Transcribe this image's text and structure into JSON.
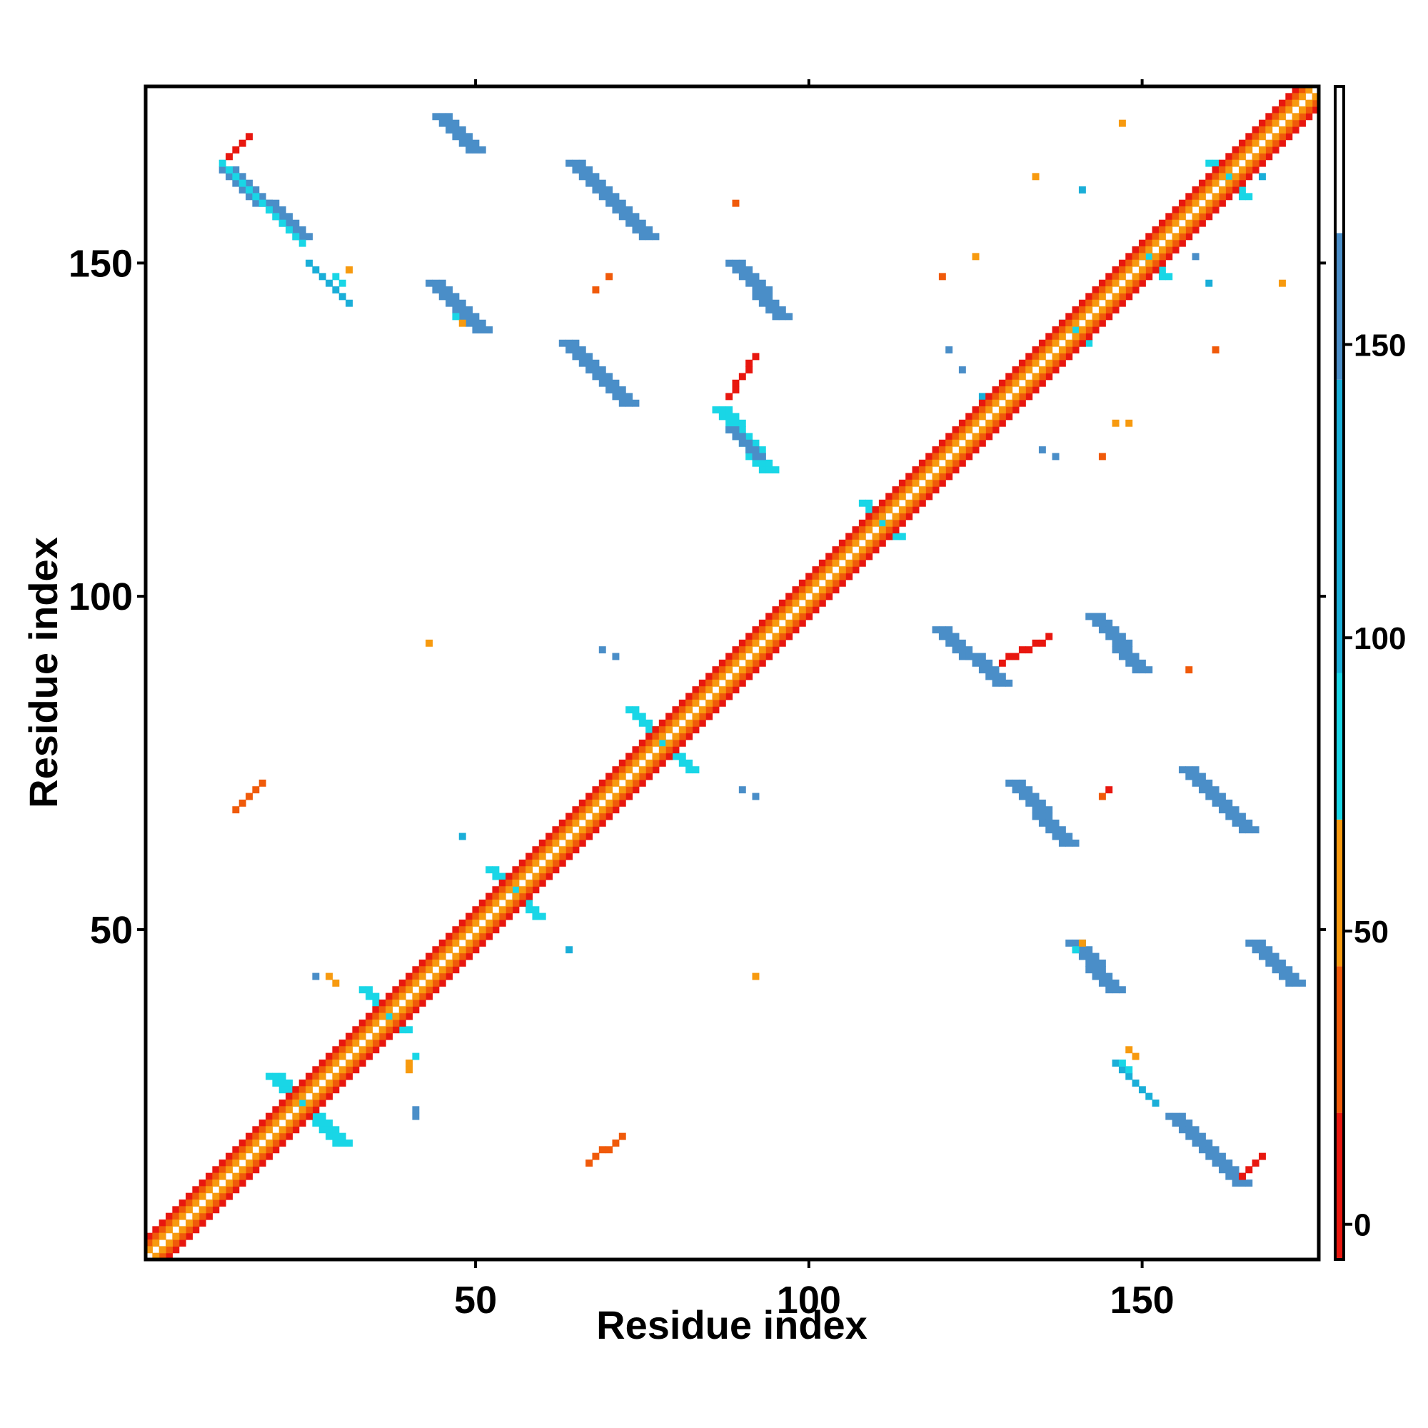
{
  "chart_data": {
    "type": "heatmap",
    "title": "",
    "xlabel": "Residue index",
    "ylabel": "Residue index",
    "xlim": [
      1,
      176
    ],
    "ylim": [
      1,
      176
    ],
    "x_ticks": [
      50,
      100,
      150
    ],
    "y_ticks": [
      50,
      100,
      150
    ],
    "grid": false,
    "colorbar": {
      "ticks": [
        0,
        50,
        100,
        150
      ],
      "range": [
        -6,
        194
      ],
      "bands": [
        {
          "from": -6,
          "to": 19,
          "color": "#e8170f"
        },
        {
          "from": 19,
          "to": 44,
          "color": "#f05a0a"
        },
        {
          "from": 44,
          "to": 69,
          "color": "#f79a0f"
        },
        {
          "from": 69,
          "to": 94,
          "color": "#19d6e6"
        },
        {
          "from": 94,
          "to": 144,
          "color": "#1aaed8"
        },
        {
          "from": 144,
          "to": 169,
          "color": "#4a8ec8"
        },
        {
          "from": 169,
          "to": 194,
          "color": "#ffffff"
        }
      ]
    },
    "colors": {
      "red": "#e8170f",
      "orange_red": "#f05a0a",
      "orange": "#f79a0f",
      "cyan": "#19d6e6",
      "light_blue": "#1aaed8",
      "steel_blue": "#4a8ec8"
    },
    "diagonal": {
      "from": 1,
      "to": 176,
      "bands": [
        {
          "offset": 1,
          "color": "orange"
        },
        {
          "offset": 2,
          "color": "orange_red"
        },
        {
          "offset": 3,
          "color": "red"
        }
      ]
    },
    "segments": [
      {
        "x1": 12,
        "y1": 164,
        "x2": 23,
        "y2": 154,
        "width": 3,
        "color": "steel_blue"
      },
      {
        "x1": 12,
        "y1": 165,
        "x2": 24,
        "y2": 153,
        "width": 1,
        "color": "cyan"
      },
      {
        "x1": 44,
        "y1": 172,
        "x2": 49,
        "y2": 167,
        "width": 3,
        "color": "steel_blue"
      },
      {
        "x1": 64,
        "y1": 165,
        "x2": 75,
        "y2": 154,
        "width": 3,
        "color": "steel_blue"
      },
      {
        "x1": 88,
        "y1": 150,
        "x2": 95,
        "y2": 142,
        "width": 3,
        "color": "steel_blue"
      },
      {
        "x1": 43,
        "y1": 147,
        "x2": 50,
        "y2": 140,
        "width": 3,
        "color": "steel_blue"
      },
      {
        "x1": 63,
        "y1": 138,
        "x2": 72,
        "y2": 129,
        "width": 3,
        "color": "steel_blue"
      },
      {
        "x1": 86,
        "y1": 128,
        "x2": 93,
        "y2": 119,
        "width": 3,
        "color": "cyan"
      },
      {
        "x1": 88,
        "y1": 125,
        "x2": 92,
        "y2": 121,
        "width": 2,
        "color": "steel_blue"
      },
      {
        "x1": 119,
        "y1": 95,
        "x2": 128,
        "y2": 87,
        "width": 3,
        "color": "steel_blue"
      },
      {
        "x1": 142,
        "y1": 97,
        "x2": 149,
        "y2": 89,
        "width": 3,
        "color": "steel_blue"
      },
      {
        "x1": 130,
        "y1": 72,
        "x2": 138,
        "y2": 63,
        "width": 3,
        "color": "steel_blue"
      },
      {
        "x1": 156,
        "y1": 74,
        "x2": 165,
        "y2": 65,
        "width": 3,
        "color": "steel_blue"
      },
      {
        "x1": 139,
        "y1": 48,
        "x2": 145,
        "y2": 41,
        "width": 3,
        "color": "steel_blue"
      },
      {
        "x1": 166,
        "y1": 48,
        "x2": 172,
        "y2": 42,
        "width": 3,
        "color": "steel_blue"
      },
      {
        "x1": 154,
        "y1": 22,
        "x2": 164,
        "y2": 12,
        "width": 3,
        "color": "steel_blue"
      },
      {
        "x1": 19,
        "y1": 28,
        "x2": 29,
        "y2": 18,
        "width": 3,
        "color": "cyan"
      },
      {
        "x1": 33,
        "y1": 41,
        "x2": 39,
        "y2": 35,
        "width": 2,
        "color": "cyan"
      },
      {
        "x1": 52,
        "y1": 59,
        "x2": 59,
        "y2": 52,
        "width": 2,
        "color": "cyan"
      },
      {
        "x1": 73,
        "y1": 83,
        "x2": 82,
        "y2": 74,
        "width": 2,
        "color": "cyan"
      },
      {
        "x1": 108,
        "y1": 114,
        "x2": 113,
        "y2": 109,
        "width": 2,
        "color": "cyan"
      },
      {
        "x1": 138,
        "y1": 141,
        "x2": 141,
        "y2": 138,
        "width": 2,
        "color": "cyan"
      },
      {
        "x1": 149,
        "y1": 152,
        "x2": 153,
        "y2": 148,
        "width": 2,
        "color": "cyan"
      },
      {
        "x1": 160,
        "y1": 165,
        "x2": 165,
        "y2": 160,
        "width": 2,
        "color": "cyan"
      },
      {
        "x1": 13,
        "y1": 166,
        "x2": 16,
        "y2": 169,
        "width": 1,
        "color": "red"
      },
      {
        "x1": 165,
        "y1": 13,
        "x2": 168,
        "y2": 16,
        "width": 1,
        "color": "red"
      },
      {
        "x1": 88,
        "y1": 130,
        "x2": 92,
        "y2": 136,
        "width": 1,
        "color": "red"
      },
      {
        "x1": 129,
        "y1": 90,
        "x2": 136,
        "y2": 94,
        "width": 1,
        "color": "red"
      },
      {
        "x1": 14,
        "y1": 68,
        "x2": 18,
        "y2": 72,
        "width": 1,
        "color": "orange_red"
      },
      {
        "x1": 67,
        "y1": 15,
        "x2": 72,
        "y2": 19,
        "width": 1,
        "color": "orange_red"
      },
      {
        "x1": 25,
        "y1": 150,
        "x2": 31,
        "y2": 144,
        "width": 1,
        "color": "light_blue"
      },
      {
        "x1": 146,
        "y1": 30,
        "x2": 152,
        "y2": 24,
        "width": 1,
        "color": "light_blue"
      }
    ],
    "points": [
      {
        "x": 29,
        "y": 148,
        "color": "cyan"
      },
      {
        "x": 30,
        "y": 147,
        "color": "cyan"
      },
      {
        "x": 31,
        "y": 149,
        "color": "orange"
      },
      {
        "x": 47,
        "y": 142,
        "color": "cyan"
      },
      {
        "x": 48,
        "y": 141,
        "color": "orange"
      },
      {
        "x": 148,
        "y": 29,
        "color": "cyan"
      },
      {
        "x": 147,
        "y": 30,
        "color": "cyan"
      },
      {
        "x": 149,
        "y": 31,
        "color": "orange"
      },
      {
        "x": 148,
        "y": 32,
        "color": "orange"
      },
      {
        "x": 141,
        "y": 48,
        "color": "orange"
      },
      {
        "x": 140,
        "y": 47,
        "color": "cyan"
      },
      {
        "x": 28,
        "y": 43,
        "color": "orange"
      },
      {
        "x": 29,
        "y": 42,
        "color": "orange"
      },
      {
        "x": 26,
        "y": 43,
        "color": "steel_blue"
      },
      {
        "x": 40,
        "y": 30,
        "color": "orange"
      },
      {
        "x": 40,
        "y": 29,
        "color": "orange"
      },
      {
        "x": 41,
        "y": 31,
        "color": "cyan"
      },
      {
        "x": 41,
        "y": 23,
        "color": "steel_blue"
      },
      {
        "x": 41,
        "y": 22,
        "color": "steel_blue"
      },
      {
        "x": 147,
        "y": 171,
        "color": "orange"
      },
      {
        "x": 134,
        "y": 163,
        "color": "orange"
      },
      {
        "x": 125,
        "y": 151,
        "color": "orange"
      },
      {
        "x": 120,
        "y": 148,
        "color": "orange_red"
      },
      {
        "x": 171,
        "y": 147,
        "color": "orange"
      },
      {
        "x": 160,
        "y": 147,
        "color": "light_blue"
      },
      {
        "x": 158,
        "y": 151,
        "color": "steel_blue"
      },
      {
        "x": 161,
        "y": 137,
        "color": "orange_red"
      },
      {
        "x": 148,
        "y": 126,
        "color": "orange"
      },
      {
        "x": 146,
        "y": 126,
        "color": "orange"
      },
      {
        "x": 144,
        "y": 121,
        "color": "orange_red"
      },
      {
        "x": 121,
        "y": 137,
        "color": "steel_blue"
      },
      {
        "x": 123,
        "y": 134,
        "color": "steel_blue"
      },
      {
        "x": 135,
        "y": 122,
        "color": "steel_blue"
      },
      {
        "x": 137,
        "y": 121,
        "color": "steel_blue"
      },
      {
        "x": 126,
        "y": 130,
        "color": "light_blue"
      },
      {
        "x": 89,
        "y": 159,
        "color": "orange_red"
      },
      {
        "x": 70,
        "y": 148,
        "color": "orange_red"
      },
      {
        "x": 68,
        "y": 146,
        "color": "orange_red"
      },
      {
        "x": 43,
        "y": 93,
        "color": "orange"
      },
      {
        "x": 69,
        "y": 92,
        "color": "steel_blue"
      },
      {
        "x": 71,
        "y": 91,
        "color": "steel_blue"
      },
      {
        "x": 90,
        "y": 71,
        "color": "steel_blue"
      },
      {
        "x": 92,
        "y": 70,
        "color": "steel_blue"
      },
      {
        "x": 48,
        "y": 64,
        "color": "light_blue"
      },
      {
        "x": 64,
        "y": 47,
        "color": "light_blue"
      },
      {
        "x": 92,
        "y": 43,
        "color": "orange"
      },
      {
        "x": 157,
        "y": 89,
        "color": "orange_red"
      },
      {
        "x": 144,
        "y": 70,
        "color": "orange_red"
      },
      {
        "x": 145,
        "y": 71,
        "color": "red"
      },
      {
        "x": 141,
        "y": 161,
        "color": "light_blue"
      },
      {
        "x": 168,
        "y": 163,
        "color": "light_blue"
      }
    ]
  }
}
